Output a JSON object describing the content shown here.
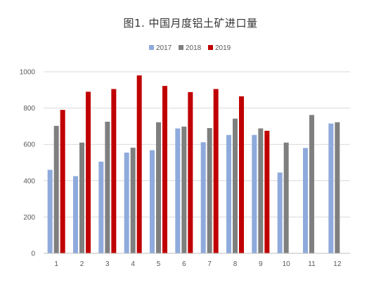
{
  "chart_data": {
    "type": "bar",
    "title": "图1. 中国月度铝土矿进口量",
    "categories": [
      "1",
      "2",
      "3",
      "4",
      "5",
      "6",
      "7",
      "8",
      "9",
      "10",
      "11",
      "12"
    ],
    "series": [
      {
        "name": "2017",
        "color": "#8faadc",
        "values": [
          460,
          425,
          505,
          555,
          568,
          688,
          612,
          652,
          652,
          445,
          580,
          715
        ]
      },
      {
        "name": "2018",
        "color": "#7f7f7f",
        "values": [
          702,
          610,
          725,
          582,
          722,
          698,
          690,
          742,
          688,
          610,
          762,
          722
        ]
      },
      {
        "name": "2019",
        "color": "#c00000",
        "values": [
          790,
          890,
          905,
          980,
          922,
          888,
          905,
          865,
          675,
          null,
          null,
          null
        ]
      }
    ],
    "ylim": [
      0,
      1000
    ],
    "yticks": [
      0,
      200,
      400,
      600,
      800,
      1000
    ],
    "xlabel": "",
    "ylabel": "",
    "grid": true,
    "legend": "top-center"
  }
}
